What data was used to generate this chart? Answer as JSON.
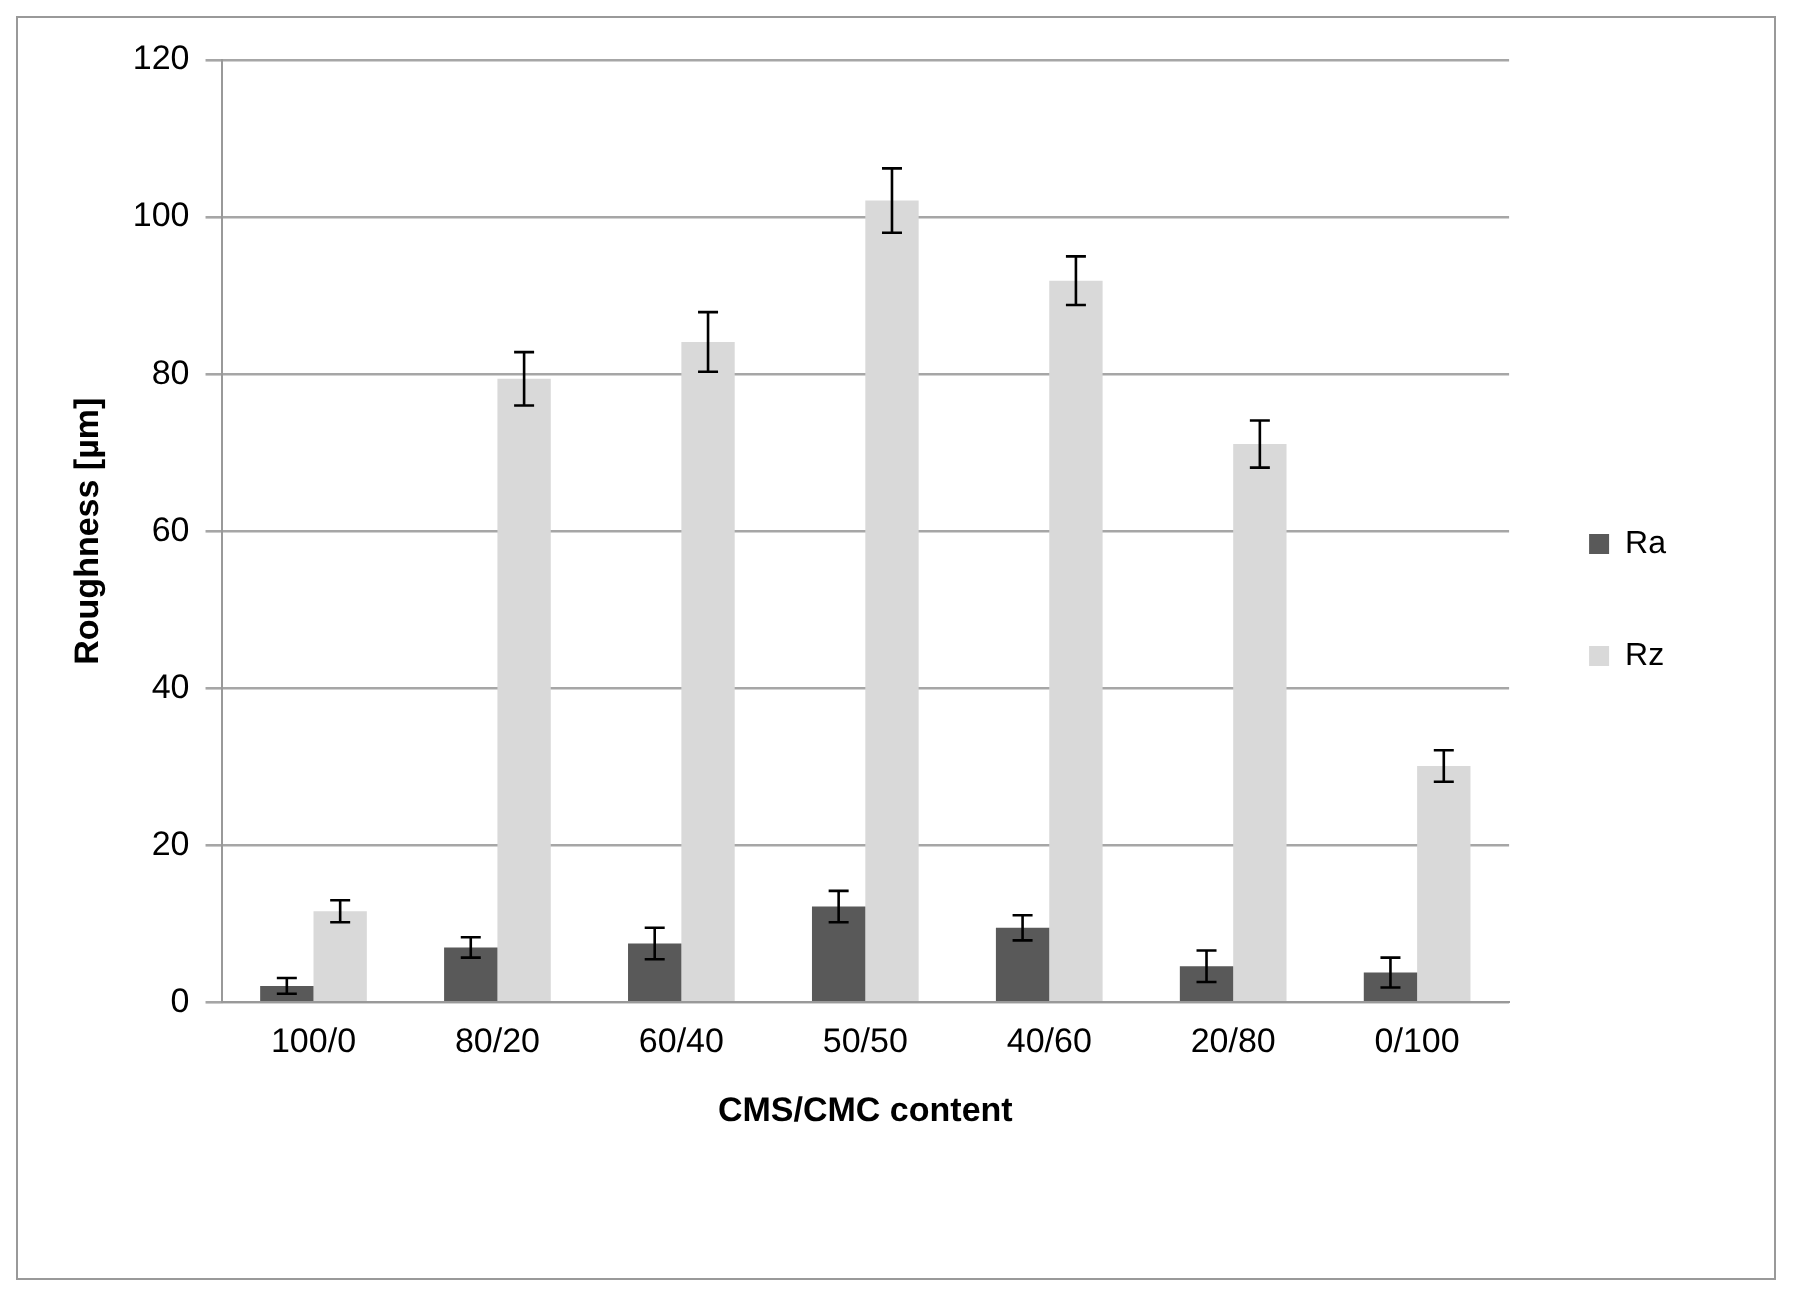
{
  "chart_data": {
    "type": "bar",
    "xlabel": "CMS/CMC content",
    "ylabel": "Roughness [µm]",
    "categories": [
      "100/0",
      "80/20",
      "60/40",
      "50/50",
      "40/60",
      "20/80",
      "0/100"
    ],
    "series": [
      {
        "name": "Ra",
        "color": "#595959",
        "values": [
          2.1,
          7.0,
          7.5,
          12.2,
          9.5,
          4.6,
          3.8
        ],
        "errors": [
          1.0,
          1.3,
          2.0,
          2.0,
          1.6,
          2.0,
          1.9
        ]
      },
      {
        "name": "Rz",
        "color": "#d9d9d9",
        "values": [
          11.6,
          79.4,
          84.1,
          102.1,
          91.9,
          71.1,
          30.1
        ],
        "errors": [
          1.4,
          3.4,
          3.8,
          4.1,
          3.1,
          3.0,
          2.0
        ]
      }
    ],
    "ylim": [
      0,
      120
    ],
    "yticks": [
      0,
      20,
      40,
      60,
      80,
      100,
      120
    ],
    "grid": "y",
    "legend": "right"
  }
}
